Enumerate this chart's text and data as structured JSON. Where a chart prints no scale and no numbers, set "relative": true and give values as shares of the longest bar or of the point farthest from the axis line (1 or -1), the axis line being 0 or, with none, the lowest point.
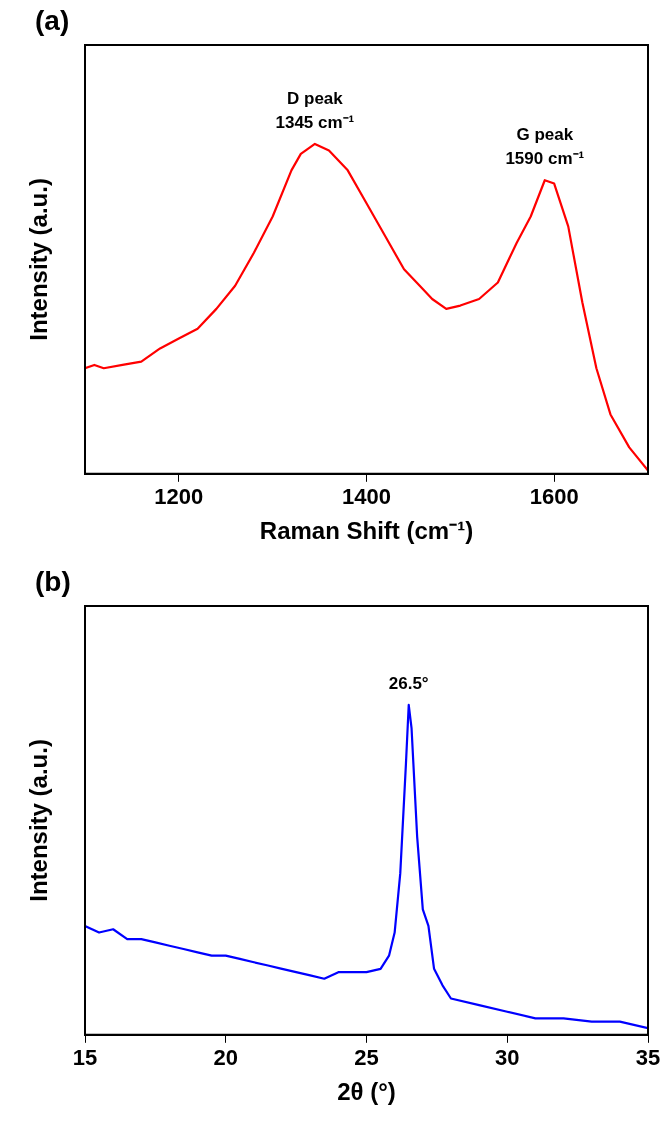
{
  "chart_data": [
    {
      "type": "line",
      "xlabel": "Raman Shift (cm⁻¹)",
      "ylabel": "Intensity (a.u.)",
      "relative": true,
      "xlim": [
        1100,
        1700
      ],
      "xticks": [
        1200,
        1400,
        1600
      ],
      "marker": "none",
      "grid": false,
      "legend": false,
      "annotations": [
        "(a)",
        {
          "text": "D peak\n1345 cm⁻¹",
          "x": 1345,
          "y": 1
        },
        {
          "text": "G peak\n1590 cm⁻¹",
          "x": 1590,
          "y": 0.89
        }
      ],
      "series": [
        {
          "color": "#ff0000",
          "x": [
            1100,
            1110,
            1120,
            1140,
            1160,
            1180,
            1200,
            1220,
            1240,
            1260,
            1280,
            1300,
            1320,
            1330,
            1345,
            1360,
            1380,
            1400,
            1420,
            1440,
            1460,
            1470,
            1485,
            1500,
            1520,
            1540,
            1560,
            1575,
            1590,
            1600,
            1615,
            1630,
            1645,
            1660,
            1680,
            1700
          ],
          "values": [
            0.32,
            0.33,
            0.32,
            0.33,
            0.34,
            0.38,
            0.41,
            0.44,
            0.5,
            0.57,
            0.67,
            0.78,
            0.92,
            0.97,
            1,
            0.98,
            0.92,
            0.82,
            0.72,
            0.62,
            0.56,
            0.53,
            0.5,
            0.51,
            0.53,
            0.58,
            0.7,
            0.78,
            0.89,
            0.88,
            0.75,
            0.52,
            0.32,
            0.18,
            0.08,
            0.01
          ]
        }
      ]
    },
    {
      "type": "line",
      "xlabel": "2θ (°)",
      "ylabel": "Intensity (a.u.)",
      "relative": true,
      "xlim": [
        15,
        35
      ],
      "xticks": [
        15,
        20,
        25,
        30,
        35
      ],
      "marker": "none",
      "grid": false,
      "legend": false,
      "annotations": [
        "(b)",
        {
          "text": "26.5°",
          "x": 26.5,
          "y": 1
        }
      ],
      "series": [
        {
          "color": "#0000ff",
          "x": [
            15,
            15.5,
            16,
            16.5,
            17,
            17.5,
            18,
            18.5,
            19,
            19.5,
            20,
            20.5,
            21,
            21.5,
            22,
            22.5,
            23,
            23.5,
            24,
            24.5,
            25,
            25.5,
            25.8,
            26,
            26.2,
            26.4,
            26.5,
            26.6,
            26.8,
            27,
            27.2,
            27.4,
            27.7,
            28,
            29,
            30,
            31,
            32,
            33,
            34,
            35
          ],
          "values": [
            0.33,
            0.31,
            0.32,
            0.29,
            0.29,
            0.28,
            0.27,
            0.26,
            0.25,
            0.24,
            0.24,
            0.23,
            0.22,
            0.21,
            0.2,
            0.19,
            0.18,
            0.17,
            0.19,
            0.19,
            0.19,
            0.2,
            0.24,
            0.31,
            0.49,
            0.82,
            1,
            0.93,
            0.6,
            0.38,
            0.33,
            0.2,
            0.15,
            0.11,
            0.09,
            0.07,
            0.05,
            0.05,
            0.04,
            0.04,
            0.02
          ]
        }
      ]
    }
  ]
}
